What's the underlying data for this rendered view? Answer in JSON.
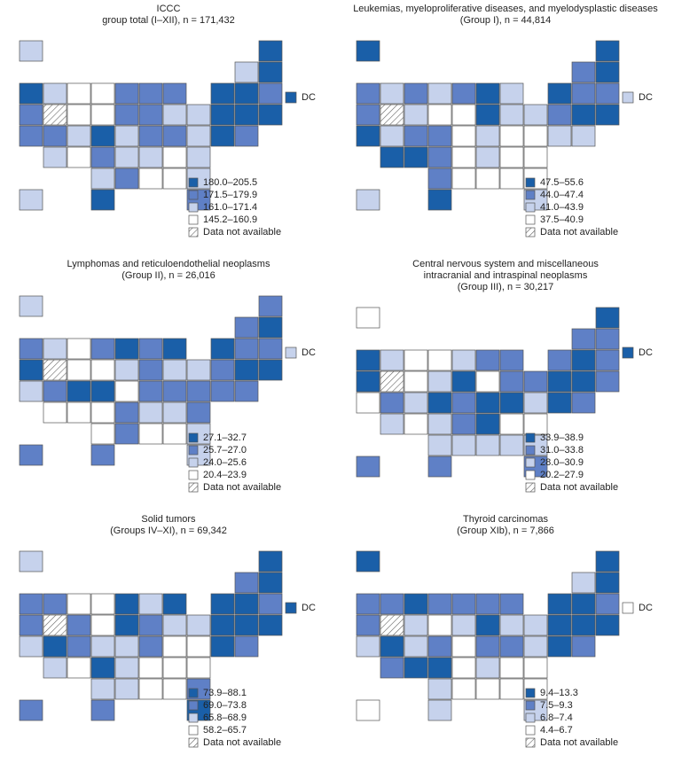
{
  "palette": [
    "#1a5fa8",
    "#5f80c6",
    "#c6d2ec",
    "#ffffff"
  ],
  "dc_label": "DC",
  "panels": [
    {
      "title_lines": [
        "ICCC",
        "group total (I–XII), n = 171,432"
      ],
      "legend": [
        "180.0–205.5",
        "171.5–179.9",
        "161.0–171.4",
        "145.2–160.9",
        "Data not available"
      ],
      "states": [
        2,
        0,
        2,
        0,
        0,
        2,
        3,
        3,
        1,
        1,
        1,
        0,
        0,
        1,
        1,
        4,
        3,
        3,
        1,
        1,
        2,
        2,
        0,
        0,
        0,
        1,
        1,
        2,
        0,
        2,
        1,
        1,
        2,
        0,
        1,
        2,
        3,
        1,
        2,
        2,
        3,
        2,
        2,
        1,
        3,
        3,
        2,
        2,
        0,
        1
      ],
      "dc": 0
    },
    {
      "title_lines": [
        "Leukemias, myeloproliferative diseases, and myelodysplastic diseases",
        "(Group I), n = 44,814"
      ],
      "legend": [
        "47.5–55.6",
        "44.0–47.4",
        "41.0–43.9",
        "37.5–40.9",
        "Data not available"
      ],
      "states": [
        0,
        0,
        1,
        0,
        1,
        2,
        1,
        2,
        1,
        0,
        2,
        0,
        1,
        1,
        1,
        4,
        2,
        3,
        3,
        0,
        2,
        2,
        1,
        0,
        0,
        0,
        2,
        1,
        1,
        3,
        2,
        3,
        3,
        2,
        2,
        0,
        0,
        1,
        3,
        2,
        3,
        3,
        1,
        3,
        3,
        3,
        3,
        2,
        0,
        2
      ],
      "dc": 2
    },
    {
      "title_lines": [
        "Lymphomas and reticuloendothelial neoplasms",
        "(Group II), n = 26,016"
      ],
      "legend": [
        "27.1–32.7",
        "25.7–27.0",
        "24.0–25.6",
        "20.4–23.9",
        "Data not available"
      ],
      "states": [
        2,
        1,
        1,
        0,
        1,
        2,
        3,
        1,
        0,
        1,
        0,
        0,
        1,
        1,
        0,
        4,
        3,
        3,
        2,
        1,
        2,
        2,
        1,
        0,
        0,
        2,
        1,
        0,
        0,
        3,
        1,
        1,
        1,
        1,
        1,
        3,
        3,
        3,
        1,
        2,
        2,
        1,
        3,
        1,
        3,
        3,
        2,
        1,
        1,
        2
      ],
      "dc": 2
    },
    {
      "title_lines": [
        "Central nervous system and miscellaneous",
        "intracranial and intraspinal neoplasms",
        "(Group III), n = 30,217"
      ],
      "legend": [
        "33.9–38.9",
        "31.0–33.8",
        "28.0–30.9",
        "20.2–27.9",
        "Data not available"
      ],
      "states": [
        3,
        0,
        1,
        1,
        0,
        2,
        3,
        3,
        2,
        1,
        1,
        1,
        0,
        1,
        0,
        4,
        3,
        2,
        0,
        3,
        1,
        1,
        0,
        0,
        1,
        3,
        1,
        2,
        0,
        1,
        0,
        0,
        2,
        0,
        1,
        2,
        3,
        2,
        1,
        0,
        3,
        3,
        2,
        2,
        2,
        2,
        2,
        1,
        1,
        1
      ],
      "dc": 0
    },
    {
      "title_lines": [
        "Solid tumors",
        "(Groups IV–XI), n = 69,342"
      ],
      "legend": [
        "73.9–88.1",
        "69.0–73.8",
        "65.8–68.9",
        "58.2–65.7",
        "Data not available"
      ],
      "states": [
        2,
        0,
        1,
        0,
        1,
        1,
        3,
        3,
        0,
        2,
        0,
        0,
        0,
        1,
        1,
        4,
        1,
        3,
        0,
        1,
        2,
        2,
        0,
        0,
        0,
        2,
        0,
        1,
        2,
        2,
        1,
        3,
        3,
        0,
        1,
        2,
        3,
        0,
        2,
        3,
        3,
        3,
        2,
        2,
        3,
        3,
        1,
        1,
        1,
        0
      ],
      "dc": 0
    },
    {
      "title_lines": [
        "Thyroid carcinomas",
        "(Group XIb), n = 7,866"
      ],
      "legend": [
        "9.4–13.3",
        "7.5–9.3",
        "6.8–7.4",
        "4.4–6.7",
        "Data not available"
      ],
      "states": [
        0,
        0,
        2,
        0,
        1,
        1,
        0,
        1,
        1,
        1,
        1,
        0,
        0,
        1,
        1,
        4,
        2,
        3,
        2,
        0,
        2,
        2,
        0,
        0,
        0,
        2,
        0,
        2,
        1,
        3,
        1,
        1,
        2,
        0,
        1,
        1,
        0,
        0,
        3,
        2,
        3,
        3,
        2,
        3,
        3,
        3,
        3,
        3,
        2,
        2
      ],
      "dc": 3
    }
  ]
}
